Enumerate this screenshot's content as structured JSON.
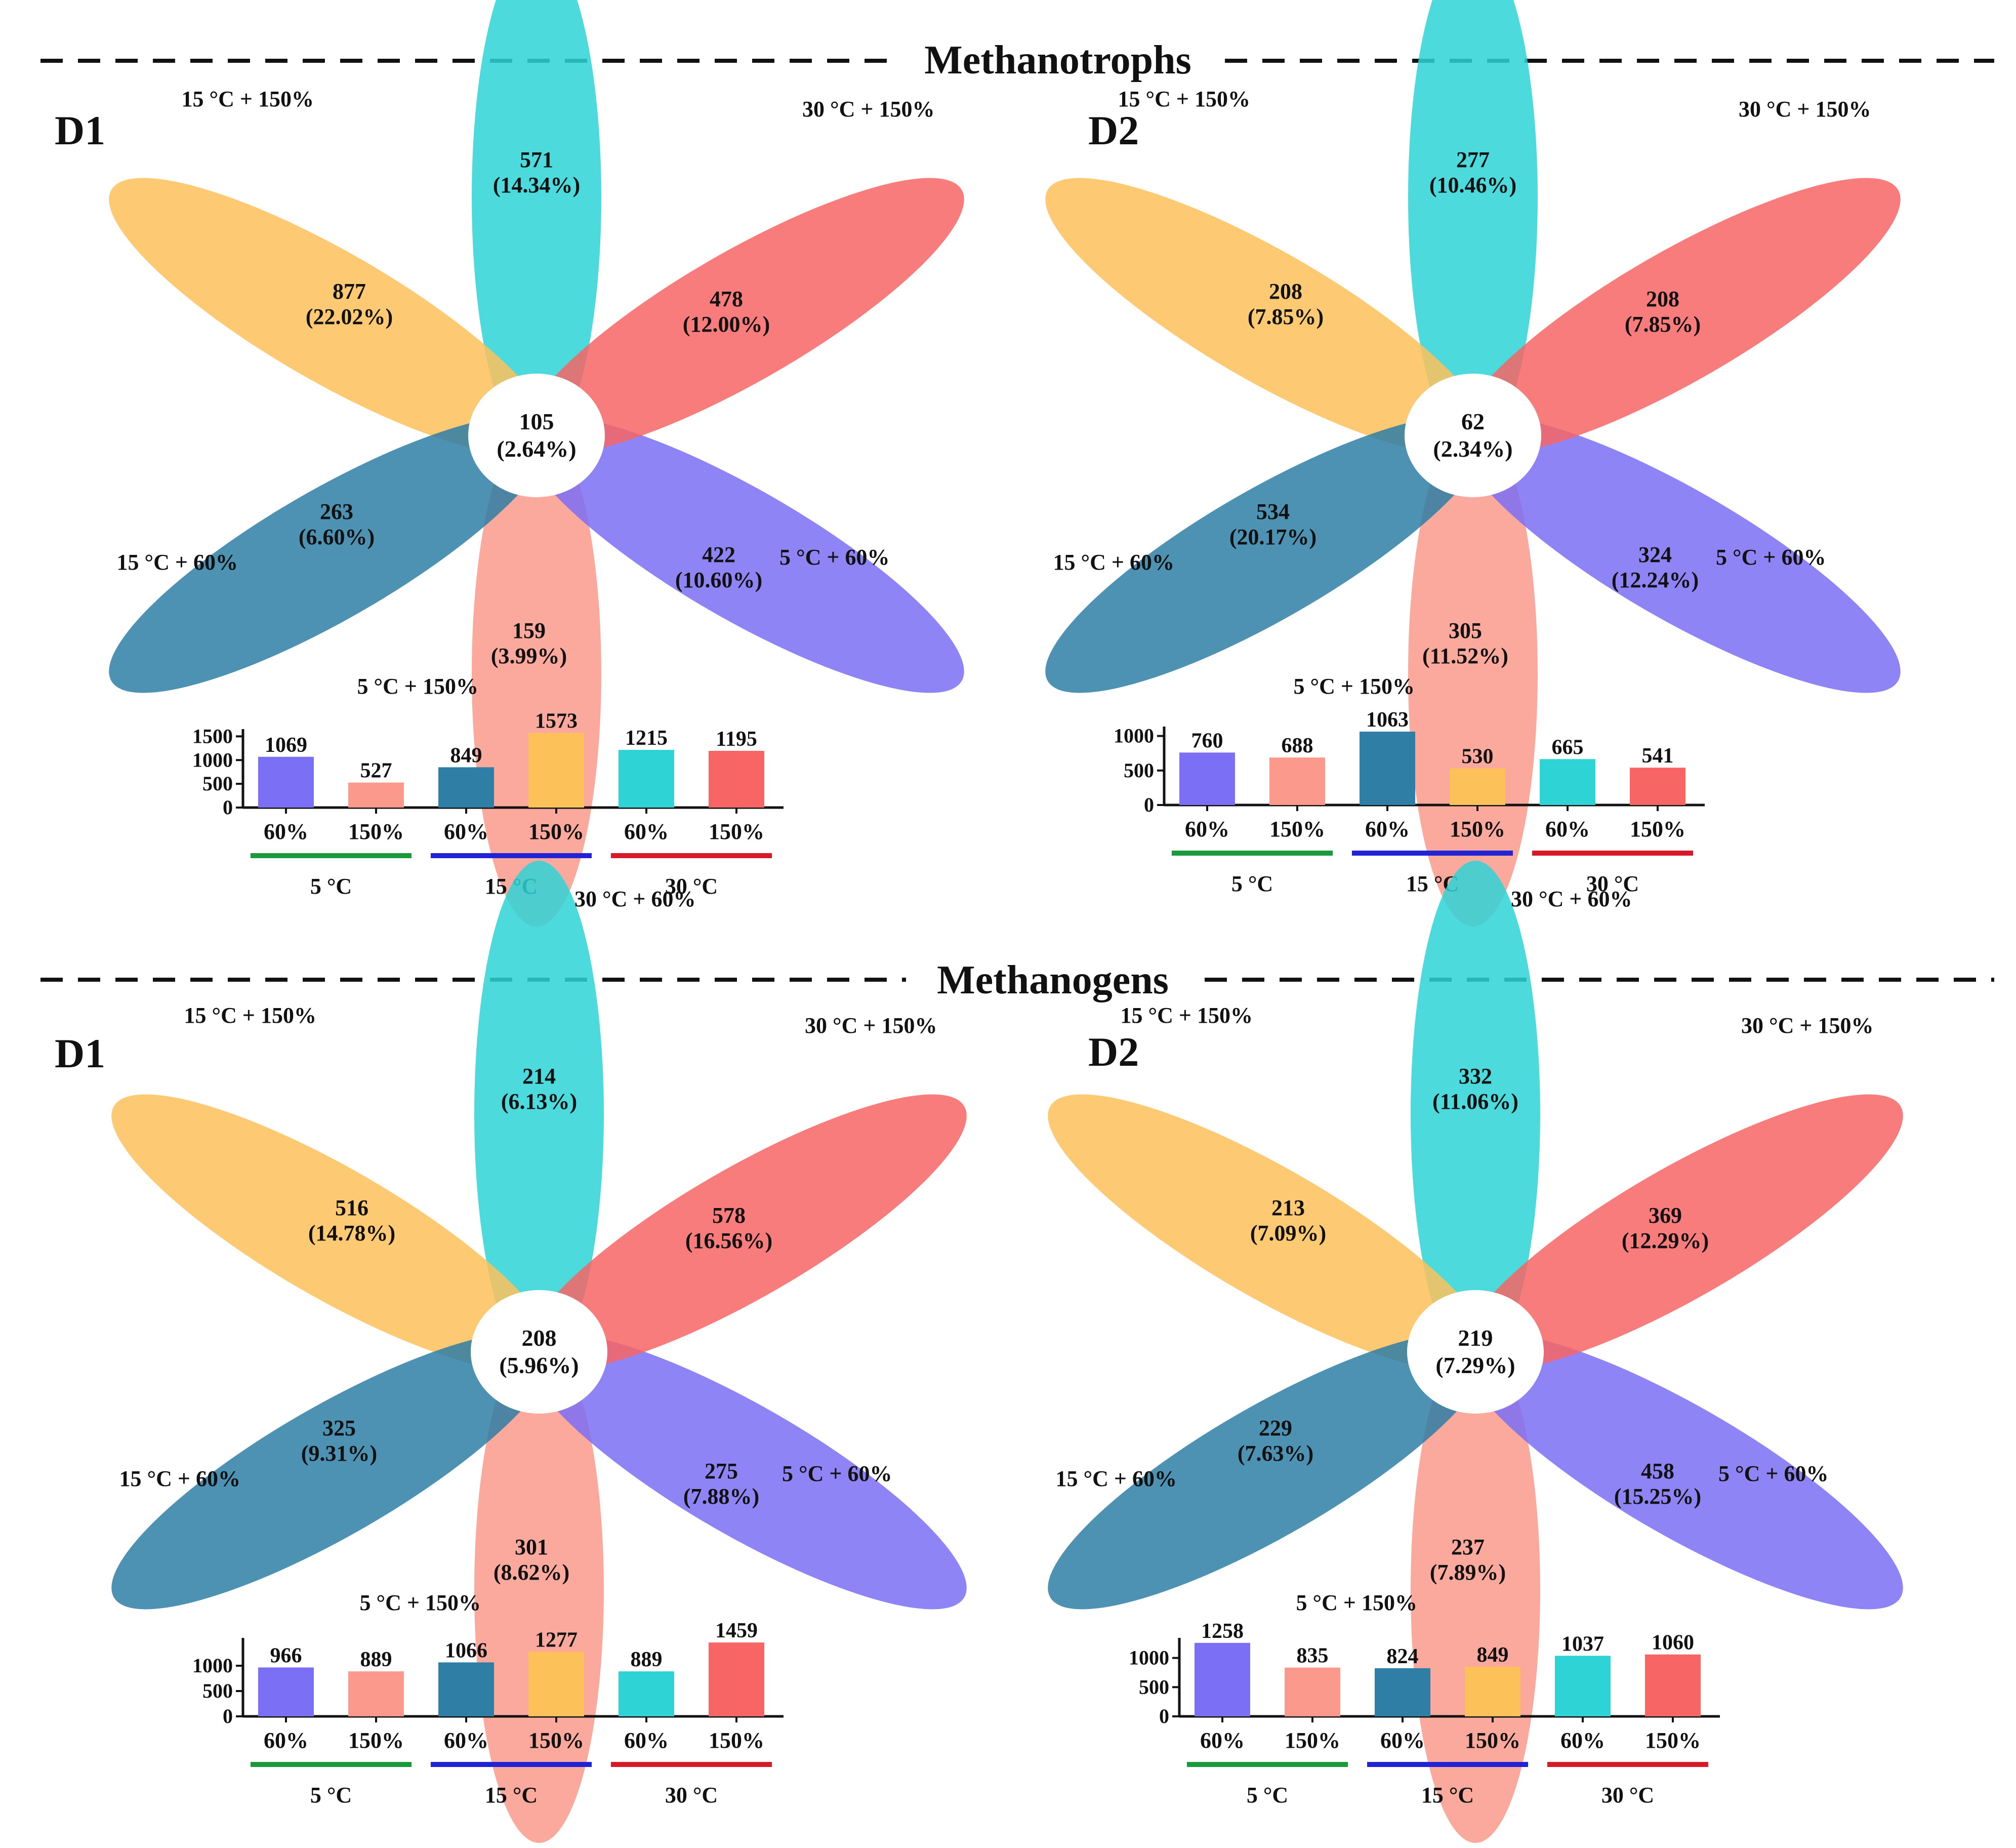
{
  "figure": {
    "sections": [
      {
        "title": "Methanotrophs"
      },
      {
        "title": "Methanogens"
      }
    ],
    "colors": {
      "5 °C + 60%": "#7b6ff5",
      "5 °C + 150%": "#fb9a8c",
      "15 °C + 60%": "#2e7ea6",
      "15 °C + 150%": "#fdc15a",
      "30 °C + 60%": "#2ed3d6",
      "30 °C + 150%": "#f76565",
      "temp_underline": {
        "5 °C": "#1a9a3a",
        "15 °C": "#2323d6",
        "30 °C": "#d61a2a"
      }
    }
  },
  "chart_data": [
    {
      "type": "venn-flower",
      "section": "Methanotrophs",
      "panel": "D1",
      "petals": [
        {
          "label": "30 °C + 60%",
          "count": "571",
          "percent": "(14.34%)"
        },
        {
          "label": "30 °C + 150%",
          "count": "478",
          "percent": "(12.00%)"
        },
        {
          "label": "5 °C + 60%",
          "count": "422",
          "percent": "(10.60%)"
        },
        {
          "label": "5 °C + 150%",
          "count": "159",
          "percent": "(3.99%)"
        },
        {
          "label": "15 °C + 60%",
          "count": "263",
          "percent": "(6.60%)"
        },
        {
          "label": "15 °C + 150%",
          "count": "877",
          "percent": "(22.02%)"
        }
      ],
      "center": {
        "count": "105",
        "percent": "(2.64%)"
      },
      "bar": {
        "type": "bar",
        "ylim": [
          0,
          1600
        ],
        "yticks": [
          "0",
          "500",
          "1000",
          "1500"
        ],
        "categories": [
          "60%",
          "150%",
          "60%",
          "150%",
          "60%",
          "150%"
        ],
        "groups": [
          "5 °C",
          "15 °C",
          "30 °C"
        ],
        "values": [
          1069,
          527,
          849,
          1573,
          1215,
          1195
        ],
        "value_labels": [
          "1069",
          "527",
          "849",
          "1573",
          "1215",
          "1195"
        ]
      }
    },
    {
      "type": "venn-flower",
      "section": "Methanotrophs",
      "panel": "D2",
      "petals": [
        {
          "label": "30 °C + 60%",
          "count": "277",
          "percent": "(10.46%)"
        },
        {
          "label": "30 °C + 150%",
          "count": "208",
          "percent": "(7.85%)"
        },
        {
          "label": "5 °C + 60%",
          "count": "324",
          "percent": "(12.24%)"
        },
        {
          "label": "5 °C + 150%",
          "count": "305",
          "percent": "(11.52%)"
        },
        {
          "label": "15 °C + 60%",
          "count": "534",
          "percent": "(20.17%)"
        },
        {
          "label": "15 °C + 150%",
          "count": "208",
          "percent": "(7.85%)"
        }
      ],
      "center": {
        "count": "62",
        "percent": "(2.34%)"
      },
      "bar": {
        "type": "bar",
        "ylim": [
          0,
          1100
        ],
        "yticks": [
          "0",
          "500",
          "1000"
        ],
        "categories": [
          "60%",
          "150%",
          "60%",
          "150%",
          "60%",
          "150%"
        ],
        "groups": [
          "5 °C",
          "15 °C",
          "30 °C"
        ],
        "values": [
          760,
          688,
          1063,
          530,
          665,
          541
        ],
        "value_labels": [
          "760",
          "688",
          "1063",
          "530",
          "665",
          "541"
        ]
      }
    },
    {
      "type": "venn-flower",
      "section": "Methanogens",
      "panel": "D1",
      "petals": [
        {
          "label": "30 °C + 60%",
          "count": "214",
          "percent": "(6.13%)"
        },
        {
          "label": "30 °C + 150%",
          "count": "578",
          "percent": "(16.56%)"
        },
        {
          "label": "5 °C + 60%",
          "count": "275",
          "percent": "(7.88%)"
        },
        {
          "label": "5 °C + 150%",
          "count": "301",
          "percent": "(8.62%)"
        },
        {
          "label": "15 °C + 60%",
          "count": "325",
          "percent": "(9.31%)"
        },
        {
          "label": "15 °C + 150%",
          "count": "516",
          "percent": "(14.78%)"
        }
      ],
      "center": {
        "count": "208",
        "percent": "(5.96%)"
      },
      "bar": {
        "type": "bar",
        "ylim": [
          0,
          1500
        ],
        "yticks": [
          "0",
          "500",
          "1000"
        ],
        "categories": [
          "60%",
          "150%",
          "60%",
          "150%",
          "60%",
          "150%"
        ],
        "groups": [
          "5 °C",
          "15 °C",
          "30 °C"
        ],
        "values": [
          966,
          889,
          1066,
          1277,
          889,
          1459
        ],
        "value_labels": [
          "966",
          "889",
          "1066",
          "1277",
          "889",
          "1459"
        ]
      }
    },
    {
      "type": "venn-flower",
      "section": "Methanogens",
      "panel": "D2",
      "petals": [
        {
          "label": "30 °C + 60%",
          "count": "332",
          "percent": "(11.06%)"
        },
        {
          "label": "30 °C + 150%",
          "count": "369",
          "percent": "(12.29%)"
        },
        {
          "label": "5 °C + 60%",
          "count": "458",
          "percent": "(15.25%)"
        },
        {
          "label": "5 °C + 150%",
          "count": "237",
          "percent": "(7.89%)"
        },
        {
          "label": "15 °C + 60%",
          "count": "229",
          "percent": "(7.63%)"
        },
        {
          "label": "15 °C + 150%",
          "count": "213",
          "percent": "(7.09%)"
        }
      ],
      "center": {
        "count": "219",
        "percent": "(7.29%)"
      },
      "bar": {
        "type": "bar",
        "ylim": [
          0,
          1300
        ],
        "yticks": [
          "0",
          "500",
          "1000"
        ],
        "categories": [
          "60%",
          "150%",
          "60%",
          "150%",
          "60%",
          "150%"
        ],
        "groups": [
          "5 °C",
          "15 °C",
          "30 °C"
        ],
        "values": [
          1258,
          835,
          824,
          849,
          1037,
          1060
        ],
        "value_labels": [
          "1258",
          "835",
          "824",
          "849",
          "1037",
          "1060"
        ]
      }
    }
  ]
}
